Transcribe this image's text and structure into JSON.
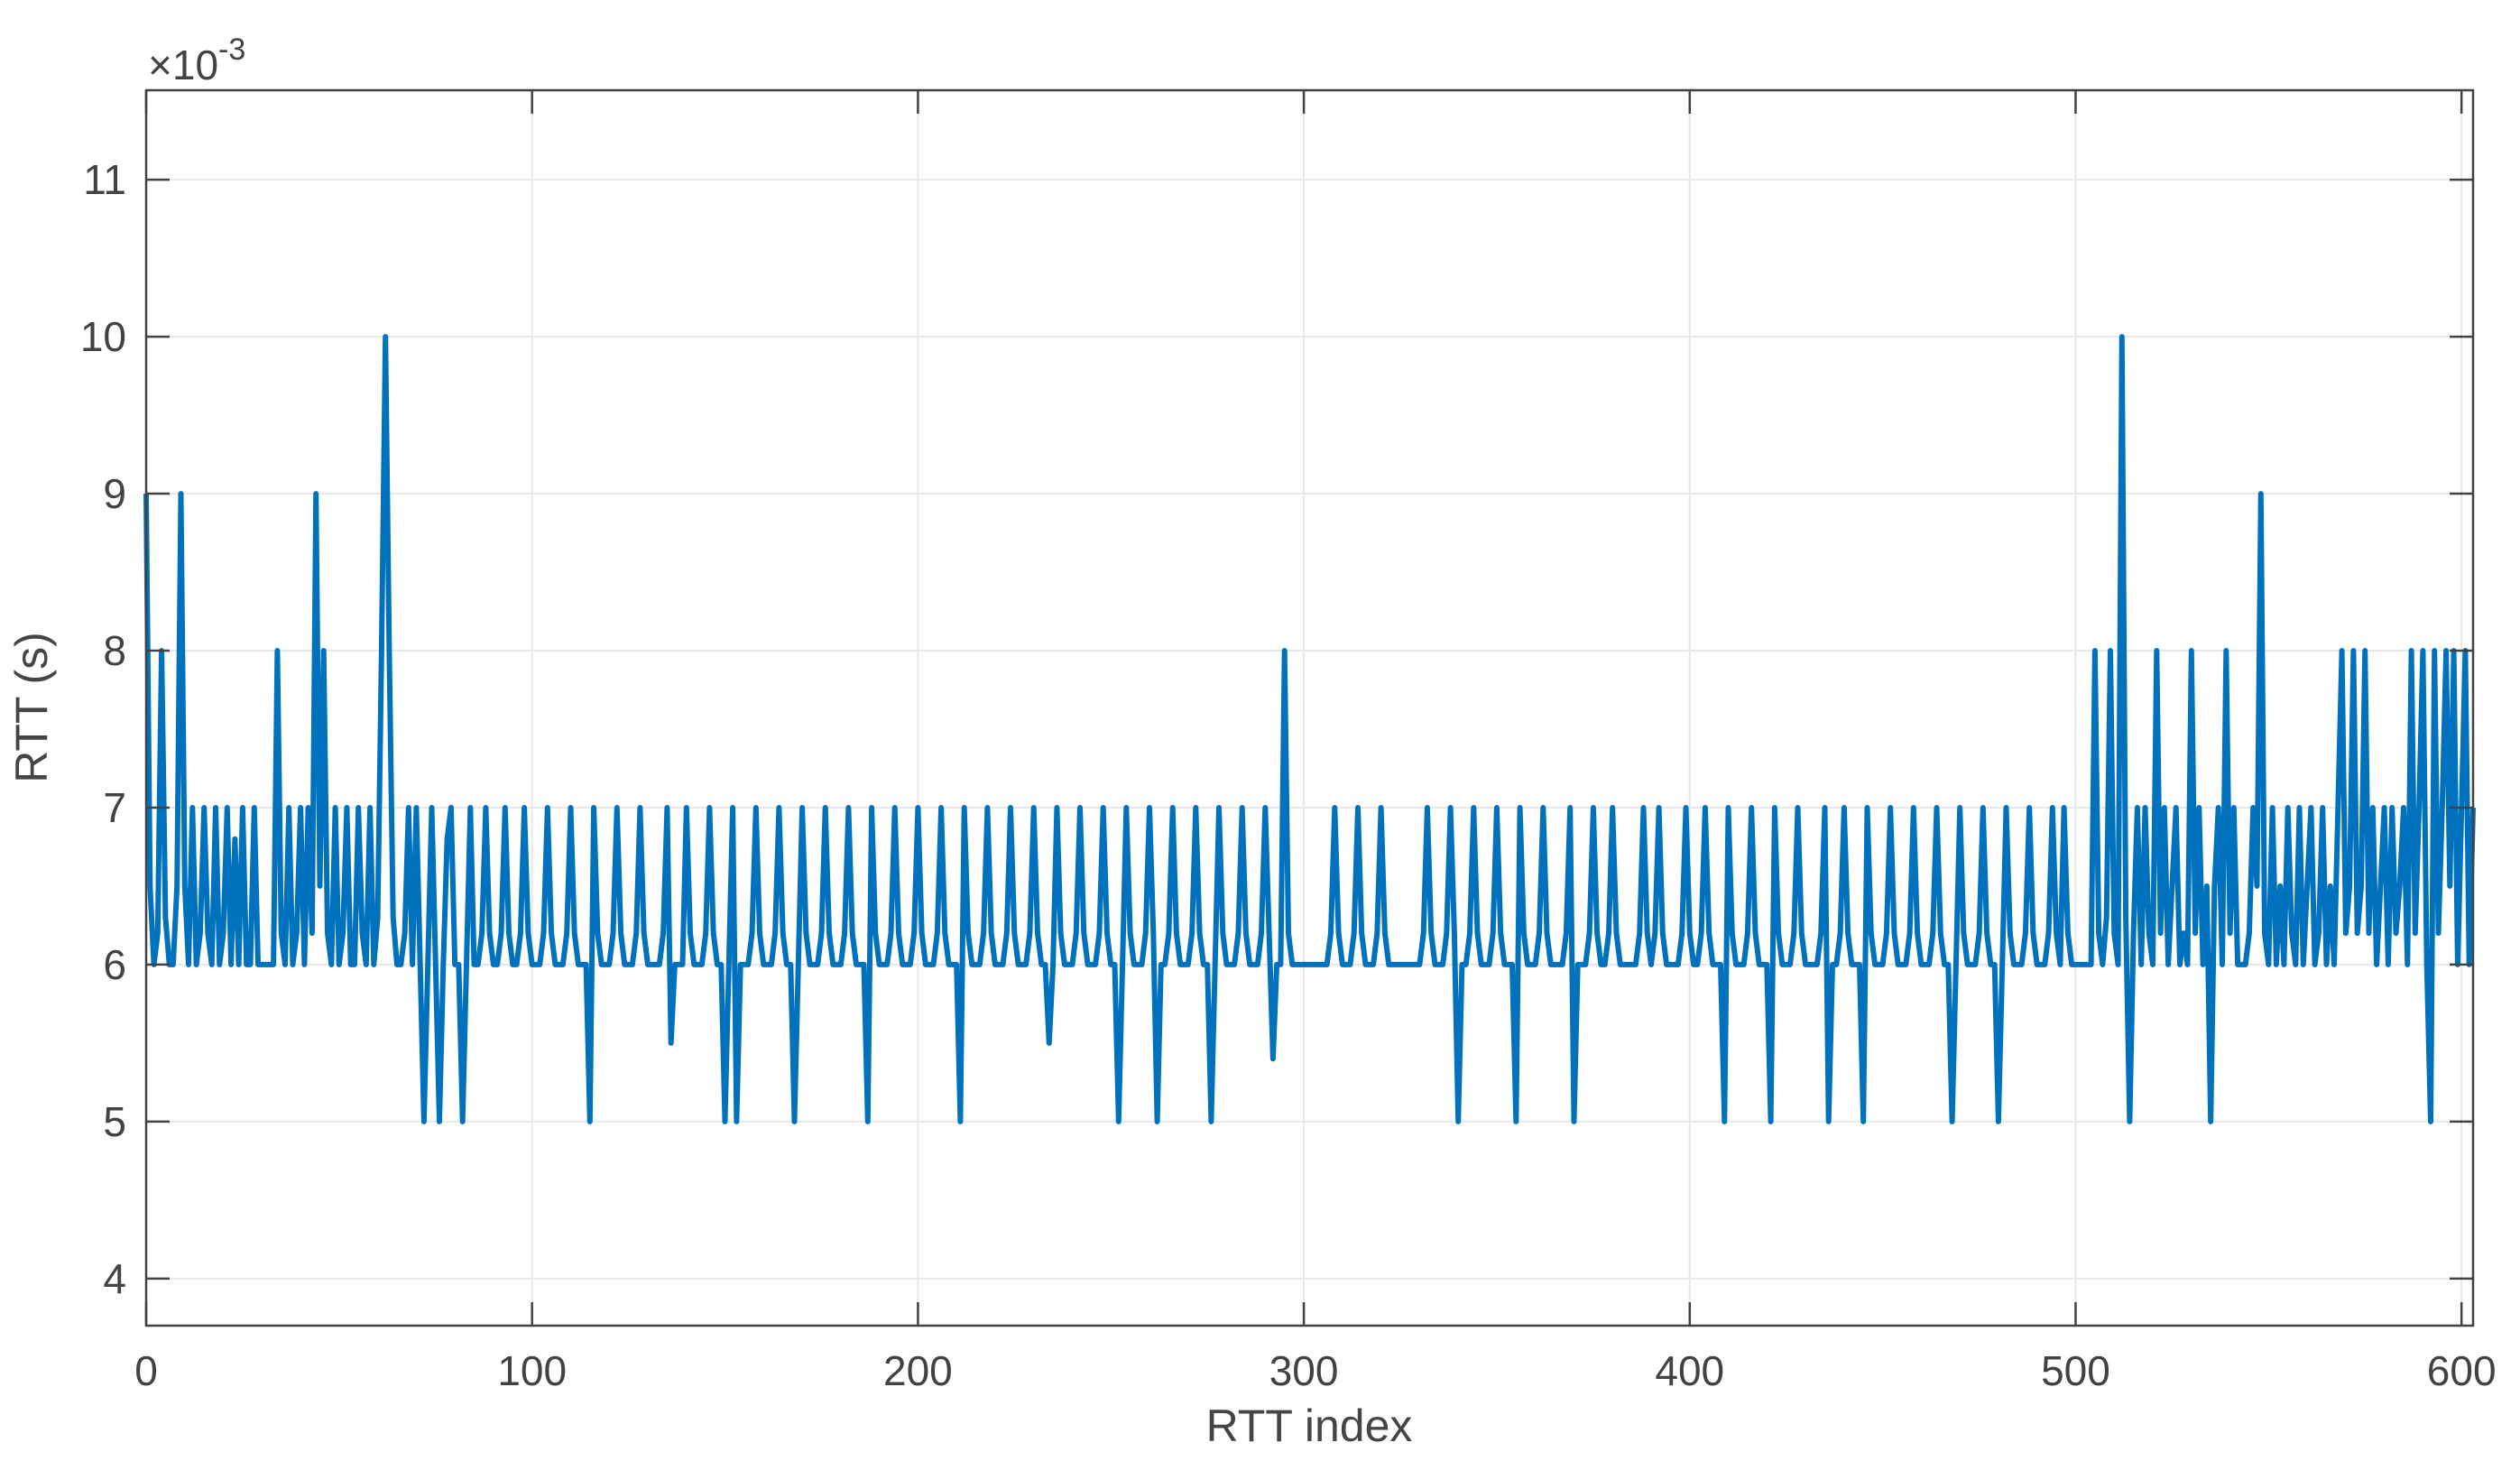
{
  "chart_data": {
    "type": "line",
    "title": "",
    "xlabel": "RTT index",
    "ylabel": "RTT (s)",
    "y_multiplier_base": "×10",
    "y_multiplier_exp": "-3",
    "legend": null,
    "grid": true,
    "line_color": "#0072BD",
    "axis_color": "#424242",
    "grid_color": "#e8e8e8",
    "background_color": "#ffffff",
    "xlim": [
      0,
      603
    ],
    "ylim": [
      3.7,
      11.57
    ],
    "x_ticks": [
      0,
      100,
      200,
      300,
      400,
      500,
      600
    ],
    "y_ticks": [
      4,
      5,
      6,
      7,
      8,
      9,
      10,
      11
    ],
    "y_unit_note": "values are milliseconds, i.e. value × 10^-3 s",
    "values_ms": [
      9,
      6.5,
      6,
      6.2,
      8,
      6.3,
      6,
      6,
      6.5,
      9,
      6.5,
      6,
      7,
      6,
      6.2,
      7,
      6.2,
      6,
      7,
      6,
      6.2,
      7,
      6,
      6.8,
      6,
      7,
      6,
      6,
      7,
      6,
      6,
      6,
      6,
      6,
      8,
      6.2,
      6,
      7,
      6,
      6.2,
      7,
      6,
      7,
      6.2,
      9,
      6.5,
      8,
      6.2,
      6,
      7,
      6,
      6.2,
      7,
      6,
      6,
      7,
      6.2,
      6,
      7,
      6,
      6.3,
      8,
      10,
      8,
      6.3,
      6,
      6,
      6.2,
      7,
      6,
      7,
      6,
      5,
      6,
      7,
      6,
      5,
      6,
      6.8,
      7,
      6,
      6,
      5,
      6,
      7,
      6,
      6,
      6.2,
      7,
      6.2,
      6,
      6,
      6.2,
      7,
      6.2,
      6,
      6,
      6.2,
      7,
      6.2,
      6,
      6,
      6,
      6.2,
      7,
      6.2,
      6,
      6,
      6,
      6.2,
      7,
      6.2,
      6,
      6,
      6,
      5,
      7,
      6.2,
      6,
      6,
      6,
      6.2,
      7,
      6.2,
      6,
      6,
      6,
      6.2,
      7,
      6.2,
      6,
      6,
      6,
      6,
      6.2,
      7,
      5.5,
      6,
      6,
      6,
      7,
      6.2,
      6,
      6,
      6,
      6.2,
      7,
      6.2,
      6,
      6,
      5,
      6,
      7,
      5,
      6,
      6,
      6,
      6.2,
      7,
      6.2,
      6,
      6,
      6,
      6.2,
      7,
      6.2,
      6,
      6,
      5,
      6,
      7,
      6.2,
      6,
      6,
      6,
      6.2,
      7,
      6.2,
      6,
      6,
      6,
      6.2,
      7,
      6.2,
      6,
      6,
      6,
      5,
      7,
      6.2,
      6,
      6,
      6,
      6.2,
      7,
      6.2,
      6,
      6,
      6,
      6.2,
      7,
      6.2,
      6,
      6,
      6,
      6.2,
      7,
      6.2,
      6,
      6,
      6,
      5,
      7,
      6.2,
      6,
      6,
      6,
      6.2,
      7,
      6.2,
      6,
      6,
      6,
      6.2,
      7,
      6.2,
      6,
      6,
      6,
      6.2,
      7,
      6.2,
      6,
      6,
      5.5,
      6,
      7,
      6.2,
      6,
      6,
      6,
      6.2,
      7,
      6.2,
      6,
      6,
      6,
      6.2,
      7,
      6.2,
      6,
      6,
      5,
      6,
      7,
      6.2,
      6,
      6,
      6,
      6.2,
      7,
      6.2,
      5,
      6,
      6,
      6.2,
      7,
      6.2,
      6,
      6,
      6,
      6.2,
      7,
      6.2,
      6,
      6,
      5,
      6,
      7,
      6.2,
      6,
      6,
      6,
      6.2,
      7,
      6.2,
      6,
      6,
      6,
      6.2,
      7,
      6.2,
      5.4,
      6,
      6,
      8,
      6.2,
      6,
      6,
      6,
      6,
      6,
      6,
      6,
      6,
      6,
      6,
      6.2,
      7,
      6.2,
      6,
      6,
      6,
      6.2,
      7,
      6.2,
      6,
      6,
      6,
      6.2,
      7,
      6.2,
      6,
      6,
      6,
      6,
      6,
      6,
      6,
      6,
      6,
      6.2,
      7,
      6.2,
      6,
      6,
      6,
      6.2,
      7,
      6.2,
      5,
      6,
      6,
      6.2,
      7,
      6.2,
      6,
      6,
      6,
      6.2,
      7,
      6.2,
      6,
      6,
      6,
      5,
      7,
      6.2,
      6,
      6,
      6,
      6.2,
      7,
      6.2,
      6,
      6,
      6,
      6,
      6.2,
      7,
      5,
      6,
      6,
      6,
      6.2,
      7,
      6.2,
      6,
      6,
      6.2,
      7,
      6.2,
      6,
      6,
      6,
      6,
      6,
      6.2,
      7,
      6.2,
      6,
      6.2,
      7,
      6.2,
      6,
      6,
      6,
      6,
      6.2,
      7,
      6.2,
      6,
      6,
      6.2,
      7,
      6.2,
      6,
      6,
      6,
      5,
      7,
      6.2,
      6,
      6,
      6,
      6.2,
      7,
      6.2,
      6,
      6,
      6,
      5,
      7,
      6.2,
      6,
      6,
      6,
      6.2,
      7,
      6.2,
      6,
      6,
      6,
      6,
      6.2,
      7,
      5,
      6,
      6,
      6.2,
      7,
      6.2,
      6,
      6,
      6,
      5,
      7,
      6.2,
      6,
      6,
      6,
      6.2,
      7,
      6.2,
      6,
      6,
      6,
      6.2,
      7,
      6.2,
      6,
      6,
      6,
      6.2,
      7,
      6.2,
      6,
      6,
      5,
      6,
      7,
      6.2,
      6,
      6,
      6,
      6.2,
      7,
      6.2,
      6,
      6,
      5,
      6,
      7,
      6.2,
      6,
      6,
      6,
      6.2,
      7,
      6.2,
      6,
      6,
      6,
      6.2,
      7,
      6.2,
      6,
      7,
      6.2,
      6,
      6,
      6,
      6,
      6,
      6,
      8,
      6.2,
      6,
      6.3,
      8,
      6.2,
      6,
      10,
      6.3,
      5,
      6.2,
      7,
      6,
      7,
      6.2,
      6,
      8,
      6.2,
      7,
      6,
      6.5,
      7,
      6,
      6.2,
      6,
      8,
      6.2,
      7,
      6,
      6.5,
      5,
      6.5,
      7,
      6,
      8,
      6.2,
      7,
      6,
      6,
      6,
      6.2,
      7,
      6.5,
      9,
      6.2,
      6,
      7,
      6,
      6.5,
      6,
      7,
      6.2,
      6,
      7,
      6,
      6.5,
      7,
      6,
      6.2,
      7,
      6,
      6.5,
      6,
      7,
      8,
      6.2,
      6.5,
      8,
      6.2,
      6.5,
      8,
      6.2,
      7,
      6,
      6.5,
      7,
      6,
      7,
      6.2,
      6.5,
      7,
      6,
      8,
      6.2,
      7,
      8,
      6,
      5,
      8,
      6.2,
      7,
      8,
      6.5,
      8,
      6,
      7,
      8,
      6,
      7
    ]
  }
}
